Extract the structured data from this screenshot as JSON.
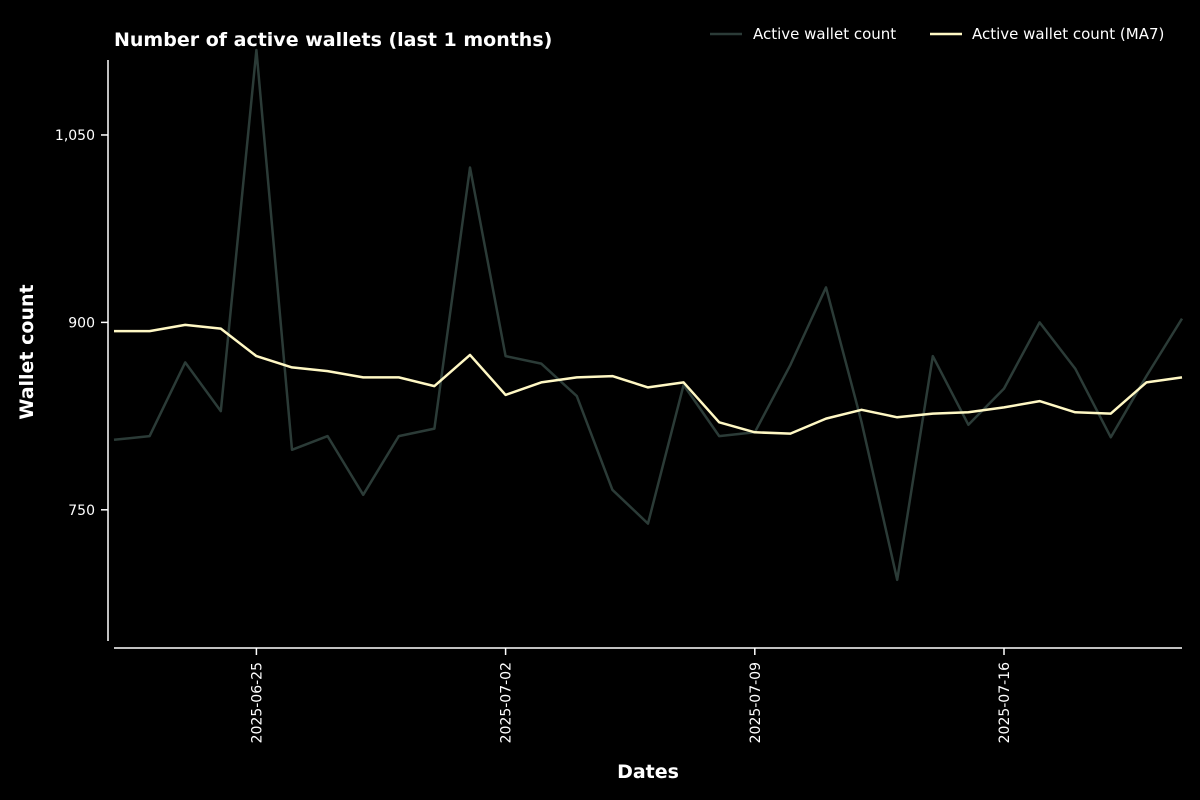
{
  "chart_data": {
    "type": "line",
    "title": "Number of active wallets (last 1 months)",
    "xlabel": "Dates",
    "ylabel": "Wallet count",
    "x": [
      "2025-06-21",
      "2025-06-22",
      "2025-06-23",
      "2025-06-24",
      "2025-06-25",
      "2025-06-26",
      "2025-06-27",
      "2025-06-28",
      "2025-06-29",
      "2025-06-30",
      "2025-07-01",
      "2025-07-02",
      "2025-07-03",
      "2025-07-04",
      "2025-07-05",
      "2025-07-06",
      "2025-07-07",
      "2025-07-08",
      "2025-07-09",
      "2025-07-10",
      "2025-07-11",
      "2025-07-12",
      "2025-07-13",
      "2025-07-14",
      "2025-07-15",
      "2025-07-16",
      "2025-07-17",
      "2025-07-18",
      "2025-07-19",
      "2025-07-20",
      "2025-07-21"
    ],
    "x_ticks": [
      "2025-06-25",
      "2025-07-02",
      "2025-07-09",
      "2025-07-16"
    ],
    "y_ticks": [
      750,
      900,
      1050
    ],
    "y_tick_labels": [
      "750",
      "900",
      "1,050"
    ],
    "ylim": [
      645,
      1110
    ],
    "grid": false,
    "legend_position": "top-right",
    "series": [
      {
        "name": "Active wallet count",
        "color": "#2b3b37",
        "values": [
          806,
          809,
          868,
          829,
          1118,
          798,
          809,
          762,
          809,
          815,
          1024,
          873,
          867,
          841,
          766,
          739,
          850,
          809,
          812,
          866,
          928,
          820,
          694,
          873,
          818,
          847,
          900,
          863,
          808,
          857,
          903
        ]
      },
      {
        "name": "Active wallet count (MA7)",
        "color": "#fff8c4",
        "values": [
          893,
          893,
          898,
          895,
          873,
          864,
          861,
          856,
          856,
          849,
          874,
          842,
          852,
          856,
          857,
          848,
          852,
          820,
          812,
          811,
          823,
          830,
          824,
          827,
          828,
          832,
          837,
          828,
          827,
          852,
          856
        ]
      }
    ]
  }
}
